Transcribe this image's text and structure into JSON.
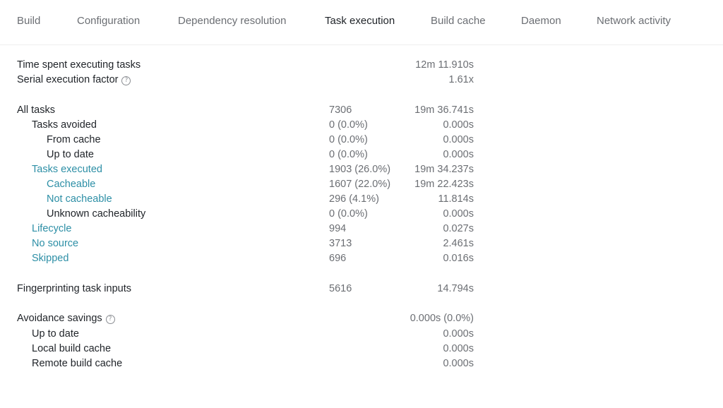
{
  "tabs": [
    {
      "label": "Build"
    },
    {
      "label": "Configuration"
    },
    {
      "label": "Dependency resolution"
    },
    {
      "label": "Task execution"
    },
    {
      "label": "Build cache"
    },
    {
      "label": "Daemon"
    },
    {
      "label": "Network activity"
    }
  ],
  "active_tab": "Task execution",
  "summary": {
    "time_spent": {
      "label": "Time spent executing tasks",
      "time": "12m 11.910s"
    },
    "serial_factor": {
      "label": "Serial execution factor",
      "time": "1.61x"
    }
  },
  "tasks": {
    "all": {
      "label": "All tasks",
      "count": "7306",
      "time": "19m 36.741s"
    },
    "avoided": {
      "label": "Tasks avoided",
      "count": "0 (0.0%)",
      "time": "0.000s"
    },
    "from_cache": {
      "label": "From cache",
      "count": "0 (0.0%)",
      "time": "0.000s"
    },
    "up_to_date": {
      "label": "Up to date",
      "count": "0 (0.0%)",
      "time": "0.000s"
    },
    "executed": {
      "label": "Tasks executed",
      "count": "1903 (26.0%)",
      "time": "19m 34.237s"
    },
    "cacheable": {
      "label": "Cacheable",
      "count": "1607 (22.0%)",
      "time": "19m 22.423s"
    },
    "not_cacheable": {
      "label": "Not cacheable",
      "count": "296 (4.1%)",
      "time": "11.814s"
    },
    "unknown": {
      "label": "Unknown cacheability",
      "count": "0 (0.0%)",
      "time": "0.000s"
    },
    "lifecycle": {
      "label": "Lifecycle",
      "count": "994",
      "time": "0.027s"
    },
    "no_source": {
      "label": "No source",
      "count": "3713",
      "time": "2.461s"
    },
    "skipped": {
      "label": "Skipped",
      "count": "696",
      "time": "0.016s"
    }
  },
  "fingerprinting": {
    "label": "Fingerprinting task inputs",
    "count": "5616",
    "time": "14.794s"
  },
  "avoidance": {
    "total": {
      "label": "Avoidance savings",
      "time": "0.000s (0.0%)"
    },
    "up_to_date": {
      "label": "Up to date",
      "time": "0.000s"
    },
    "local": {
      "label": "Local build cache",
      "time": "0.000s"
    },
    "remote": {
      "label": "Remote build cache",
      "time": "0.000s"
    }
  },
  "help_glyph": "?",
  "colors": {
    "link": "#2d8fa6",
    "muted": "#6b6e73",
    "text": "#1f2328",
    "divider": "#eeeeee"
  }
}
